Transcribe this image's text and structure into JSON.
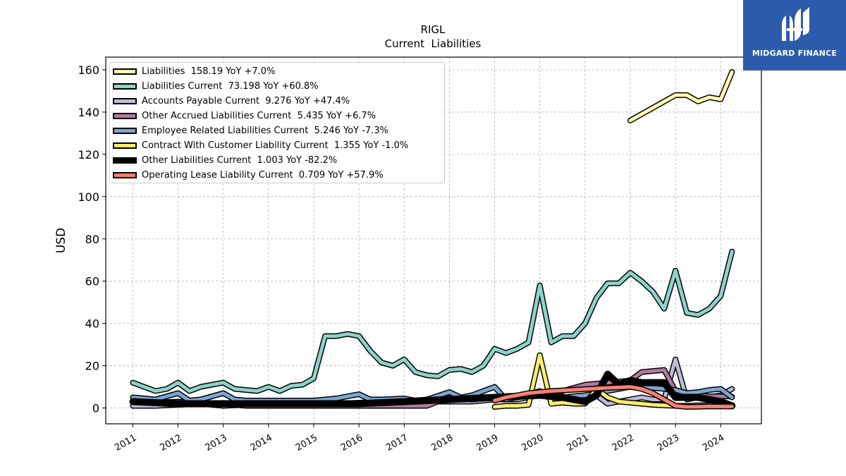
{
  "brand": {
    "name": "MIDGARD FINANCE",
    "logo": "midgard-finance-logo",
    "color": "#2c5bab"
  },
  "chart_data": {
    "type": "line",
    "title": "RIGL",
    "subtitle": "Current  Liabilities",
    "ylabel": "USD",
    "xlabel": "",
    "ylim": [
      -7.5,
      166
    ],
    "xlim": [
      2010.4,
      2024.9
    ],
    "yticks": [
      0,
      20,
      40,
      60,
      80,
      100,
      120,
      140,
      160
    ],
    "xticks": [
      "2011",
      "2012",
      "2013",
      "2014",
      "2015",
      "2016",
      "2017",
      "2018",
      "2019",
      "2020",
      "2021",
      "2022",
      "2023",
      "2024"
    ],
    "grid": true,
    "legend_position": "upper-left",
    "series": [
      {
        "name": "Liabilities",
        "legend": "Liabilities  158.19 YoY +7.0%",
        "color": "#ffffb3",
        "width": 5,
        "x": [
          2022.0,
          2022.25,
          2022.5,
          2022.75,
          2023.0,
          2023.25,
          2023.5,
          2023.75,
          2024.0,
          2024.25
        ],
        "y": [
          136,
          139,
          142,
          145,
          148,
          148,
          145,
          147,
          146,
          159
        ]
      },
      {
        "name": "Liabilities Current",
        "legend": "Liabilities Current  73.198 YoY +60.8%",
        "color": "#8dd3c7",
        "width": 5,
        "x": [
          2011.0,
          2011.25,
          2011.5,
          2011.75,
          2012.0,
          2012.25,
          2012.5,
          2012.75,
          2013.0,
          2013.25,
          2013.5,
          2013.75,
          2014.0,
          2014.25,
          2014.5,
          2014.75,
          2015.0,
          2015.25,
          2015.5,
          2015.75,
          2016.0,
          2016.25,
          2016.5,
          2016.75,
          2017.0,
          2017.25,
          2017.5,
          2017.75,
          2018.0,
          2018.25,
          2018.5,
          2018.75,
          2019.0,
          2019.25,
          2019.5,
          2019.75,
          2020.0,
          2020.25,
          2020.5,
          2020.75,
          2021.0,
          2021.25,
          2021.5,
          2021.75,
          2022.0,
          2022.25,
          2022.5,
          2022.75,
          2023.0,
          2023.25,
          2023.5,
          2023.75,
          2024.0,
          2024.25
        ],
        "y": [
          12,
          10,
          8,
          9,
          12,
          8,
          10,
          11,
          12,
          9,
          8.5,
          8,
          10,
          8,
          10.5,
          11,
          14,
          34,
          34,
          35,
          34,
          27,
          21.5,
          20,
          23,
          17,
          15.5,
          15,
          18,
          18.5,
          17,
          20,
          28,
          26,
          28,
          31,
          58,
          31,
          34,
          34,
          40,
          52,
          59,
          59,
          64,
          60,
          55,
          47,
          65,
          45,
          44,
          47,
          53,
          74
        ]
      },
      {
        "name": "Accounts Payable Current",
        "legend": "Accounts Payable Current  9.276 YoY +47.4%",
        "color": "#bebada",
        "width": 5,
        "x": [
          2011.0,
          2011.5,
          2012.0,
          2012.5,
          2013.0,
          2013.5,
          2014.0,
          2014.5,
          2015.0,
          2015.5,
          2016.0,
          2016.5,
          2017.0,
          2017.5,
          2018.0,
          2018.5,
          2019.0,
          2019.5,
          2020.0,
          2020.25,
          2020.5,
          2020.75,
          2021.0,
          2021.25,
          2021.5,
          2021.75,
          2022.0,
          2022.25,
          2022.5,
          2022.75,
          2023.0,
          2023.25,
          2023.5,
          2023.75,
          2024.0,
          2024.25
        ],
        "y": [
          1,
          1,
          1.5,
          2,
          1,
          1.5,
          1,
          1.5,
          1.5,
          2,
          2.5,
          3,
          3,
          3,
          3,
          3,
          4,
          4,
          6,
          5,
          5,
          4,
          6,
          6,
          2,
          3,
          4,
          5,
          4,
          4,
          23,
          4,
          5,
          5,
          6,
          9
        ]
      },
      {
        "name": "Other Accrued Liabilities Current",
        "legend": "Other Accrued Liabilities Current  5.435 YoY +6.7%",
        "color": "#b07aa1",
        "width": 5,
        "x": [
          2011.0,
          2011.5,
          2012.0,
          2012.5,
          2013.0,
          2013.5,
          2014.0,
          2014.5,
          2015.0,
          2015.5,
          2016.0,
          2016.5,
          2017.0,
          2017.5,
          2018.0,
          2018.5,
          2019.0,
          2019.5,
          2020.0,
          2020.5,
          2021.0,
          2021.5,
          2022.0,
          2022.25,
          2022.5,
          2022.75,
          2023.0,
          2023.25,
          2023.5,
          2023.75,
          2024.0,
          2024.25
        ],
        "y": [
          3,
          2.5,
          3,
          2.5,
          2,
          1,
          1,
          1,
          1,
          1,
          1,
          1,
          1,
          1,
          5,
          4,
          5,
          5,
          7,
          8,
          11,
          12,
          13,
          17,
          17.5,
          18,
          8,
          6,
          6,
          5.5,
          5.5,
          5.4
        ]
      },
      {
        "name": "Employee Related Liabilities Current",
        "legend": "Employee Related Liabilities Current  5.246 YoY -7.3%",
        "color": "#7ba7d2",
        "width": 5,
        "x": [
          2011.0,
          2011.5,
          2012.0,
          2012.25,
          2012.5,
          2013.0,
          2013.25,
          2013.5,
          2014.0,
          2014.5,
          2015.0,
          2015.5,
          2016.0,
          2016.25,
          2016.5,
          2017.0,
          2017.25,
          2017.5,
          2018.0,
          2018.25,
          2018.5,
          2019.0,
          2019.25,
          2019.5,
          2020.0,
          2020.25,
          2020.5,
          2021.0,
          2021.5,
          2022.0,
          2022.5,
          2022.75,
          2023.0,
          2023.25,
          2023.5,
          2023.75,
          2024.0,
          2024.25
        ],
        "y": [
          5,
          4,
          7,
          3.5,
          4,
          7,
          4,
          3.5,
          3.5,
          3.5,
          3.5,
          4.5,
          6.5,
          4,
          4,
          4.5,
          3.5,
          4,
          7.5,
          5,
          6,
          10,
          4,
          5,
          8,
          4,
          5,
          6,
          8,
          10,
          9.5,
          9,
          8.5,
          7,
          7.5,
          8.5,
          9,
          5
        ]
      },
      {
        "name": "Contract With Customer Liability Current",
        "legend": "Contract With Customer Liability Current  1.355 YoY -1.0%",
        "color": "#ffed6f",
        "width": 5,
        "x": [
          2019.0,
          2019.25,
          2019.5,
          2019.75,
          2020.0,
          2020.25,
          2020.5,
          2020.75,
          2021.0,
          2021.25,
          2021.5,
          2021.75,
          2022.0,
          2022.25,
          2022.5,
          2022.75,
          2023.0,
          2023.25,
          2023.5,
          2023.75,
          2024.0,
          2024.25
        ],
        "y": [
          0.5,
          1,
          1,
          1.5,
          25,
          2,
          2.5,
          2,
          2,
          9,
          5,
          3,
          2.5,
          2,
          1.5,
          1.2,
          1,
          1,
          1.2,
          1.3,
          1.4,
          1.36
        ]
      },
      {
        "name": "Other Liabilities Current",
        "legend": "Other Liabilities Current  1.003 YoY -82.2%",
        "color": "#000000",
        "width": 7,
        "x": [
          2011.0,
          2012.0,
          2013.0,
          2014.0,
          2015.0,
          2016.0,
          2017.0,
          2018.0,
          2019.0,
          2020.0,
          2020.5,
          2021.0,
          2021.25,
          2021.5,
          2021.75,
          2022.0,
          2022.25,
          2022.5,
          2022.75,
          2023.0,
          2023.25,
          2023.5,
          2023.75,
          2024.0,
          2024.25
        ],
        "y": [
          3,
          2,
          2,
          2,
          2,
          2,
          3,
          4,
          5,
          6,
          5,
          3,
          6,
          16,
          11,
          13,
          12,
          12,
          12,
          5,
          5,
          5,
          4,
          3,
          1
        ]
      },
      {
        "name": "Operating Lease Liability Current",
        "legend": "Operating Lease Liability Current  0.709 YoY +57.9%",
        "color": "#fb8072",
        "width": 5,
        "x": [
          2019.0,
          2019.25,
          2019.5,
          2019.75,
          2020.0,
          2020.25,
          2020.5,
          2020.75,
          2021.0,
          2021.25,
          2021.5,
          2021.75,
          2022.0,
          2022.25,
          2022.5,
          2022.75,
          2023.0,
          2023.25,
          2023.5,
          2023.75,
          2024.0,
          2024.25
        ],
        "y": [
          3.5,
          5,
          6,
          7,
          7.5,
          8,
          8.3,
          8.6,
          8.9,
          9.2,
          9.5,
          9.7,
          10,
          9,
          7,
          4,
          1,
          0.5,
          0.6,
          0.7,
          0.7,
          0.7
        ]
      }
    ]
  }
}
